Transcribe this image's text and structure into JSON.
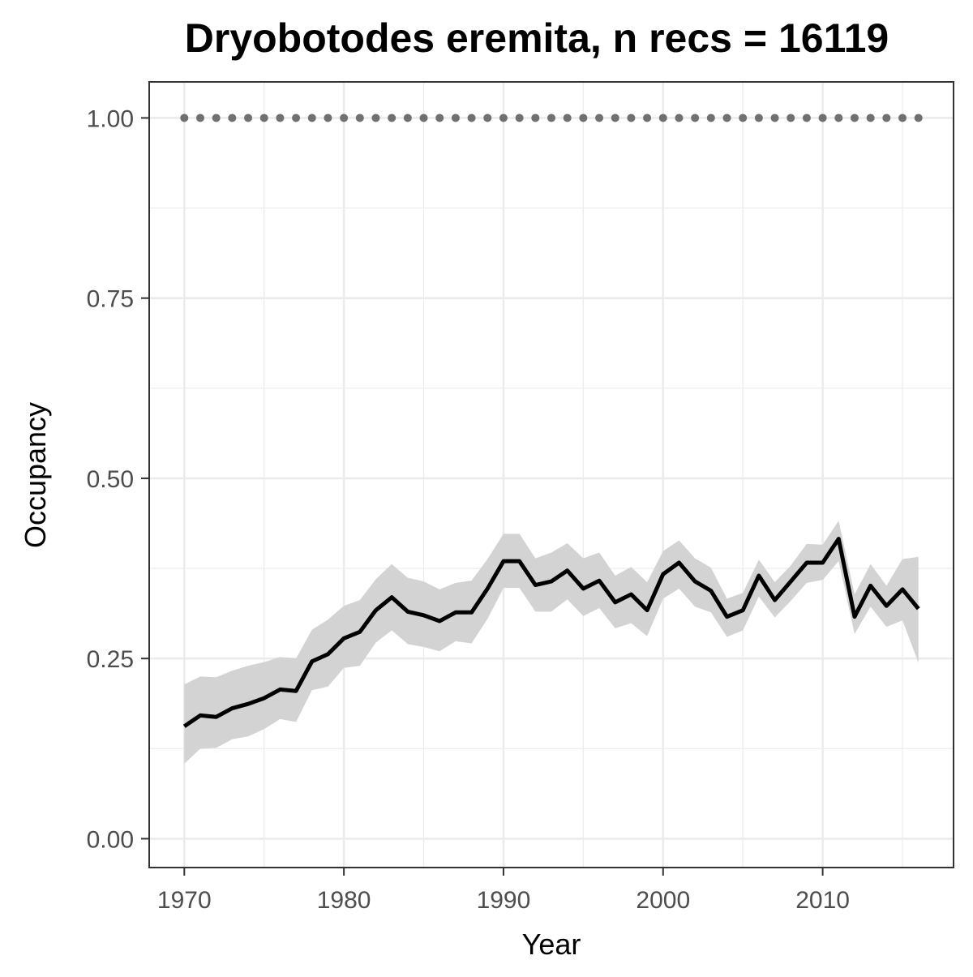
{
  "chart_data": {
    "type": "line",
    "title": "Dryobotodes eremita, n recs = 16119",
    "xlabel": "Year",
    "ylabel": "Occupancy",
    "xlim": [
      1967.8,
      2018.2
    ],
    "ylim": [
      -0.04,
      1.05
    ],
    "x_ticks": [
      "1970",
      "1980",
      "1990",
      "2000",
      "2010"
    ],
    "x_tick_values": [
      1970,
      1980,
      1990,
      2000,
      2010
    ],
    "y_ticks": [
      "0.00",
      "0.25",
      "0.50",
      "0.75",
      "1.00"
    ],
    "y_tick_values": [
      0,
      0.25,
      0.5,
      0.75,
      1.0
    ],
    "grid": true,
    "x": [
      1970,
      1971,
      1972,
      1973,
      1974,
      1975,
      1976,
      1977,
      1978,
      1979,
      1980,
      1981,
      1982,
      1983,
      1984,
      1985,
      1986,
      1987,
      1988,
      1989,
      1990,
      1991,
      1992,
      1993,
      1994,
      1995,
      1996,
      1997,
      1998,
      1999,
      2000,
      2001,
      2002,
      2003,
      2004,
      2005,
      2006,
      2007,
      2008,
      2009,
      2010,
      2011,
      2012,
      2013,
      2014,
      2015,
      2016
    ],
    "series": [
      {
        "values": [
          0.156,
          0.171,
          0.169,
          0.181,
          0.187,
          0.195,
          0.207,
          0.205,
          0.246,
          0.256,
          0.278,
          0.287,
          0.317,
          0.335,
          0.315,
          0.31,
          0.302,
          0.314,
          0.314,
          0.347,
          0.385,
          0.385,
          0.352,
          0.357,
          0.372,
          0.347,
          0.358,
          0.328,
          0.339,
          0.317,
          0.367,
          0.383,
          0.357,
          0.344,
          0.308,
          0.317,
          0.365,
          0.331,
          0.357,
          0.383,
          0.383,
          0.416,
          0.308,
          0.351,
          0.323,
          0.346,
          0.319
        ],
        "lower": [
          0.104,
          0.125,
          0.126,
          0.138,
          0.142,
          0.152,
          0.166,
          0.162,
          0.206,
          0.211,
          0.237,
          0.24,
          0.272,
          0.289,
          0.27,
          0.266,
          0.26,
          0.274,
          0.271,
          0.305,
          0.348,
          0.348,
          0.315,
          0.315,
          0.332,
          0.309,
          0.32,
          0.292,
          0.299,
          0.281,
          0.333,
          0.347,
          0.322,
          0.314,
          0.28,
          0.289,
          0.336,
          0.307,
          0.33,
          0.355,
          0.359,
          0.385,
          0.284,
          0.322,
          0.294,
          0.303,
          0.244
        ]
      },
      {
        "values": [
          0.214,
          0.225,
          0.224,
          0.233,
          0.24,
          0.245,
          0.252,
          0.25,
          0.29,
          0.304,
          0.323,
          0.331,
          0.36,
          0.381,
          0.362,
          0.357,
          0.346,
          0.355,
          0.358,
          0.388,
          0.423,
          0.423,
          0.389,
          0.397,
          0.41,
          0.389,
          0.397,
          0.365,
          0.377,
          0.356,
          0.399,
          0.414,
          0.389,
          0.376,
          0.333,
          0.341,
          0.387,
          0.356,
          0.379,
          0.409,
          0.408,
          0.441,
          0.339,
          0.381,
          0.351,
          0.388,
          0.391
        ]
      },
      {
        "values": [
          1,
          1,
          1,
          1,
          1,
          1,
          1,
          1,
          1,
          1,
          1,
          1,
          1,
          1,
          1,
          1,
          1,
          1,
          1,
          1,
          1,
          1,
          1,
          1,
          1,
          1,
          1,
          1,
          1,
          1,
          1,
          1,
          1,
          1,
          1,
          1,
          1,
          1,
          1,
          1,
          1,
          1,
          1,
          1,
          1,
          1,
          1
        ]
      }
    ],
    "colors": {
      "line": "#000000",
      "ribbon": "#d3d3d3",
      "points": "#707070",
      "grid": "#ebebeb",
      "panel_border": "#333333",
      "tick": "#333333"
    }
  }
}
